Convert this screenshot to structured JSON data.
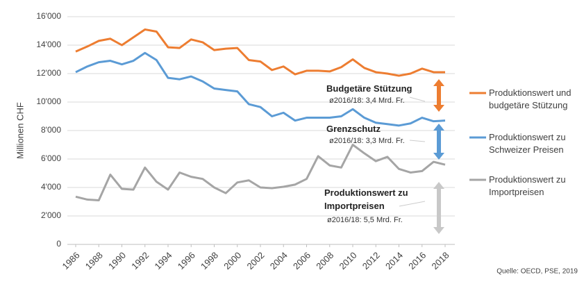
{
  "chart_data": {
    "type": "line",
    "y_label": "Millionen CHF",
    "x": [
      1986,
      1987,
      1988,
      1989,
      1990,
      1991,
      1992,
      1993,
      1994,
      1995,
      1996,
      1997,
      1998,
      1999,
      2000,
      2001,
      2002,
      2003,
      2004,
      2005,
      2006,
      2007,
      2008,
      2009,
      2010,
      2011,
      2012,
      2013,
      2014,
      2015,
      2016,
      2017,
      2018
    ],
    "xlim": [
      1986,
      2018
    ],
    "xticks": [
      1986,
      1988,
      1990,
      1992,
      1994,
      1996,
      1998,
      2000,
      2002,
      2004,
      2006,
      2008,
      2010,
      2012,
      2014,
      2016,
      2018
    ],
    "ylim": [
      0,
      16000
    ],
    "yticks": [
      0,
      {
        "value": 2000,
        "label": "2'000"
      },
      {
        "value": 4000,
        "label": "4'000"
      },
      {
        "value": 6000,
        "label": "6'000"
      },
      {
        "value": 8000,
        "label": "8'000"
      },
      {
        "value": 10000,
        "label": "10'000"
      },
      {
        "value": 12000,
        "label": "12'000"
      },
      {
        "value": 14000,
        "label": "14'000"
      },
      {
        "value": 16000,
        "label": "16'000"
      }
    ],
    "grid": true,
    "series": [
      {
        "name": "Produktionswert und budgetäre Stützung",
        "color": "#ed7d31",
        "values": [
          13550,
          13900,
          14300,
          14450,
          14000,
          14550,
          15100,
          14950,
          13850,
          13800,
          14400,
          14200,
          13650,
          13750,
          13800,
          12950,
          12850,
          12250,
          12500,
          11950,
          12200,
          12200,
          12150,
          12450,
          13000,
          12400,
          12100,
          12000,
          11850,
          12000,
          12350,
          12100,
          12100
        ]
      },
      {
        "name": "Produktionswert zu Schweizer Preisen",
        "color": "#5b9bd5",
        "values": [
          12100,
          12500,
          12800,
          12900,
          12650,
          12900,
          13450,
          12950,
          11700,
          11600,
          11800,
          11450,
          10950,
          10850,
          10750,
          9850,
          9650,
          9000,
          9250,
          8700,
          8900,
          8900,
          8900,
          9000,
          9500,
          8900,
          8550,
          8450,
          8350,
          8500,
          8900,
          8650,
          8700
        ]
      },
      {
        "name": "Produktionswert zu Importpreisen",
        "color": "#a5a5a5",
        "values": [
          3350,
          3150,
          3100,
          4900,
          3900,
          3850,
          5400,
          4400,
          3850,
          5050,
          4750,
          4600,
          4000,
          3600,
          4350,
          4500,
          4000,
          3950,
          4050,
          4200,
          4600,
          6200,
          5550,
          5400,
          7000,
          6400,
          5850,
          6150,
          5300,
          5050,
          5150,
          5800,
          5600
        ]
      }
    ],
    "annotations": [
      {
        "title": "Budgetäre Stützung",
        "text": "ø2016/18: 3,4 Mrd. Fr."
      },
      {
        "title": "Grenzschutz",
        "text": "ø2016/18: 3,3 Mrd. Fr."
      },
      {
        "title": "Produktionswert zu Importpreisen",
        "text": "ø2016/18: 5,5 Mrd. Fr."
      }
    ],
    "source": "Quelle: OECD, PSE, 2019"
  }
}
